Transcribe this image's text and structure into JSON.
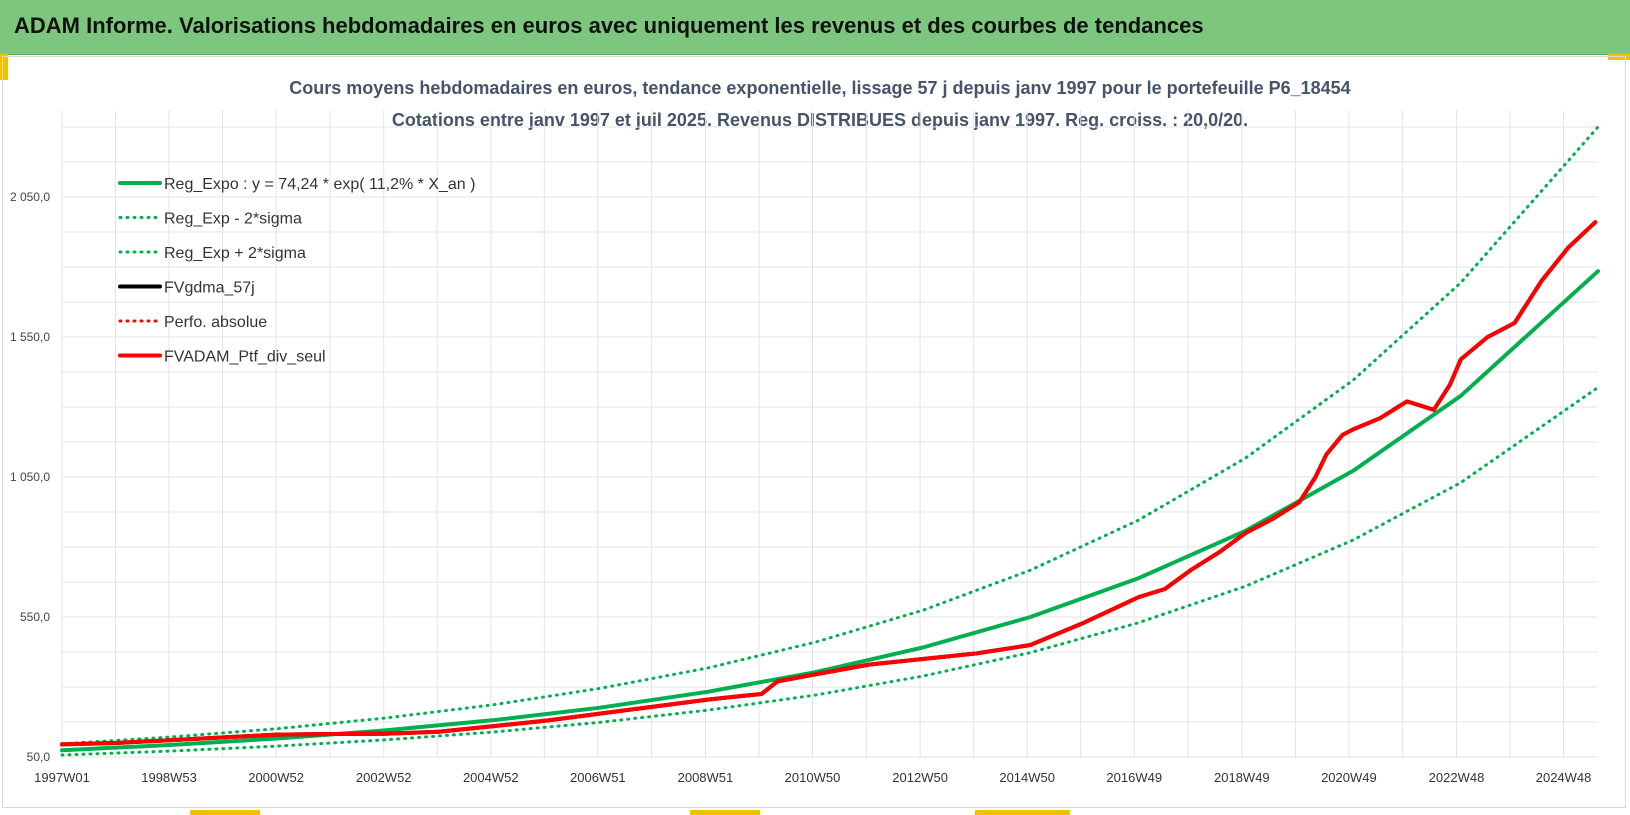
{
  "header": {
    "title": "ADAM Informe. Valorisations hebdomadaires en euros avec uniquement les revenus et des courbes de tendances"
  },
  "colors": {
    "header_bg": "#7dc67d",
    "accent": "#f2c200",
    "reg_expo": "#00b050",
    "fv_gdma": "#000000",
    "fv_adam": "#ff0000",
    "title_text": "#44546a"
  },
  "chart_data": {
    "type": "line",
    "title_lines": [
      "Cours moyens hebdomadaires  en euros, tendance exponentielle, lissage 57 j depuis janv 1997 pour le portefeuille P6_18454",
      "Cotations entre janv 1997 et juil 2025. Revenus DISTRIBUES depuis janv 1997. Reg. croiss. : 20,0/20."
    ],
    "xlabel": "",
    "ylabel": "",
    "ylim": [
      50,
      2400
    ],
    "xlim": [
      1997.0,
      2025.55
    ],
    "y_ticks": [
      50,
      550,
      1050,
      1550,
      2050
    ],
    "y_tick_labels": [
      "50,0",
      "550,0",
      "1 050,0",
      "1 550,0",
      "2 050,0"
    ],
    "x_ticks": [
      1997.0,
      1998.99,
      2000.98,
      2002.98,
      2004.97,
      2006.96,
      2008.96,
      2010.95,
      2012.95,
      2014.94,
      2016.93,
      2018.93,
      2020.92,
      2022.92,
      2024.91
    ],
    "x_tick_labels": [
      "1997W01",
      "1998W53",
      "2000W52",
      "2002W52",
      "2004W52",
      "2006W51",
      "2008W51",
      "2010W50",
      "2012W50",
      "2014W50",
      "2016W49",
      "2018W49",
      "2020W49",
      "2022W48",
      "2024W48"
    ],
    "grid": true,
    "legend_position": "top-left",
    "legend": [
      {
        "name": "Reg_Expo : y = 74,24 * exp( 11,2% *  X_an )",
        "color": "#00b050",
        "style": "solid",
        "width": 4
      },
      {
        "name": "Reg_Exp - 2*sigma",
        "color": "#00b050",
        "style": "dotted",
        "width": 3
      },
      {
        "name": "Reg_Exp + 2*sigma",
        "color": "#00b050",
        "style": "dotted",
        "width": 3
      },
      {
        "name": "FVgdma_57j",
        "color": "#000000",
        "style": "solid",
        "width": 4
      },
      {
        "name": "Perfo. absolue",
        "color": "#ff0000",
        "style": "dotted",
        "width": 3
      },
      {
        "name": "FVADAM_Ptf_div_seul",
        "color": "#ff0000",
        "style": "solid",
        "width": 4
      }
    ],
    "series": [
      {
        "name": "Reg_Expo : y = 74,24 * exp( 11,2% *  X_an )",
        "x": [
          1997.0,
          1999.0,
          2001.0,
          2003.0,
          2005.0,
          2007.0,
          2009.0,
          2011.0,
          2013.0,
          2015.0,
          2017.0,
          2019.0,
          2021.0,
          2023.0,
          2025.55
        ],
        "y": [
          74,
          93,
          116,
          145,
          181,
          226,
          283,
          353,
          441,
          550,
          688,
          858,
          1072,
          1340,
          1785
        ]
      },
      {
        "name": "Reg_Exp - 2*sigma",
        "x": [
          1997.0,
          1999.0,
          2001.0,
          2003.0,
          2005.0,
          2007.0,
          2009.0,
          2011.0,
          2013.0,
          2015.0,
          2017.0,
          2019.0,
          2021.0,
          2023.0,
          2025.55
        ],
        "y": [
          57,
          71,
          89,
          111,
          139,
          174,
          217,
          271,
          339,
          423,
          529,
          660,
          825,
          1030,
          1370
        ]
      },
      {
        "name": "Reg_Exp + 2*sigma",
        "x": [
          1997.0,
          1999.0,
          2001.0,
          2003.0,
          2005.0,
          2007.0,
          2009.0,
          2011.0,
          2013.0,
          2015.0,
          2017.0,
          2019.0,
          2021.0,
          2023.0,
          2025.55
        ],
        "y": [
          97,
          121,
          151,
          189,
          236,
          295,
          368,
          460,
          574,
          717,
          895,
          1118,
          1396,
          1744,
          2300
        ]
      },
      {
        "name": "FVgdma_57j",
        "x": [
          1997.0,
          1998.0,
          1999.0,
          2000.0,
          2001.0,
          2002.0,
          2003.0,
          2004.0,
          2005.0,
          2006.0,
          2007.0,
          2008.0,
          2009.0,
          2009.5,
          2010.0,
          2010.3,
          2011.0,
          2012.0,
          2013.0,
          2014.0,
          2015.0,
          2016.0,
          2017.0,
          2017.5,
          2018.0,
          2018.5,
          2019.0,
          2019.5,
          2020.0,
          2020.3,
          2020.5,
          2020.8,
          2021.0,
          2021.5,
          2022.0,
          2022.5,
          2022.8,
          2023.0,
          2023.5,
          2024.0,
          2024.5,
          2025.0,
          2025.5
        ],
        "y": [
          95,
          100,
          110,
          120,
          130,
          132,
          133,
          140,
          160,
          180,
          205,
          230,
          255,
          265,
          275,
          320,
          345,
          380,
          400,
          420,
          450,
          530,
          620,
          650,
          720,
          780,
          850,
          900,
          960,
          1050,
          1130,
          1200,
          1220,
          1260,
          1320,
          1290,
          1380,
          1470,
          1550,
          1600,
          1750,
          1870,
          1960
        ]
      },
      {
        "name": "Perfo. absolue",
        "x": [
          1997.0,
          1998.0,
          1999.0,
          2000.0,
          2001.0,
          2002.0,
          2003.0,
          2004.0,
          2005.0,
          2006.0,
          2007.0,
          2008.0,
          2009.0,
          2009.5,
          2010.0,
          2010.3,
          2011.0,
          2012.0,
          2013.0,
          2014.0,
          2015.0,
          2016.0,
          2017.0,
          2017.5,
          2018.0,
          2018.5,
          2019.0,
          2019.5,
          2020.0,
          2020.3,
          2020.5,
          2020.8,
          2021.0,
          2021.5,
          2022.0,
          2022.5,
          2022.8,
          2023.0,
          2023.5,
          2024.0,
          2024.5,
          2025.0,
          2025.5
        ],
        "y": [
          95,
          100,
          110,
          120,
          130,
          132,
          133,
          140,
          160,
          180,
          205,
          230,
          255,
          265,
          275,
          320,
          345,
          380,
          400,
          420,
          450,
          530,
          620,
          650,
          720,
          780,
          850,
          900,
          960,
          1050,
          1130,
          1200,
          1220,
          1260,
          1320,
          1290,
          1380,
          1470,
          1550,
          1600,
          1750,
          1870,
          1960
        ]
      },
      {
        "name": "FVADAM_Ptf_div_seul",
        "x": [
          1997.0,
          1998.0,
          1999.0,
          2000.0,
          2001.0,
          2002.0,
          2003.0,
          2004.0,
          2005.0,
          2006.0,
          2007.0,
          2008.0,
          2009.0,
          2009.5,
          2010.0,
          2010.3,
          2011.0,
          2012.0,
          2013.0,
          2014.0,
          2015.0,
          2016.0,
          2017.0,
          2017.5,
          2018.0,
          2018.5,
          2019.0,
          2019.5,
          2020.0,
          2020.3,
          2020.5,
          2020.8,
          2021.0,
          2021.5,
          2022.0,
          2022.5,
          2022.8,
          2023.0,
          2023.5,
          2024.0,
          2024.5,
          2025.0,
          2025.5
        ],
        "y": [
          95,
          100,
          110,
          120,
          130,
          132,
          133,
          140,
          160,
          180,
          205,
          230,
          255,
          265,
          275,
          320,
          345,
          380,
          400,
          420,
          450,
          530,
          620,
          650,
          720,
          780,
          850,
          900,
          960,
          1050,
          1130,
          1200,
          1220,
          1260,
          1320,
          1290,
          1380,
          1470,
          1550,
          1600,
          1750,
          1870,
          1960
        ]
      }
    ]
  }
}
